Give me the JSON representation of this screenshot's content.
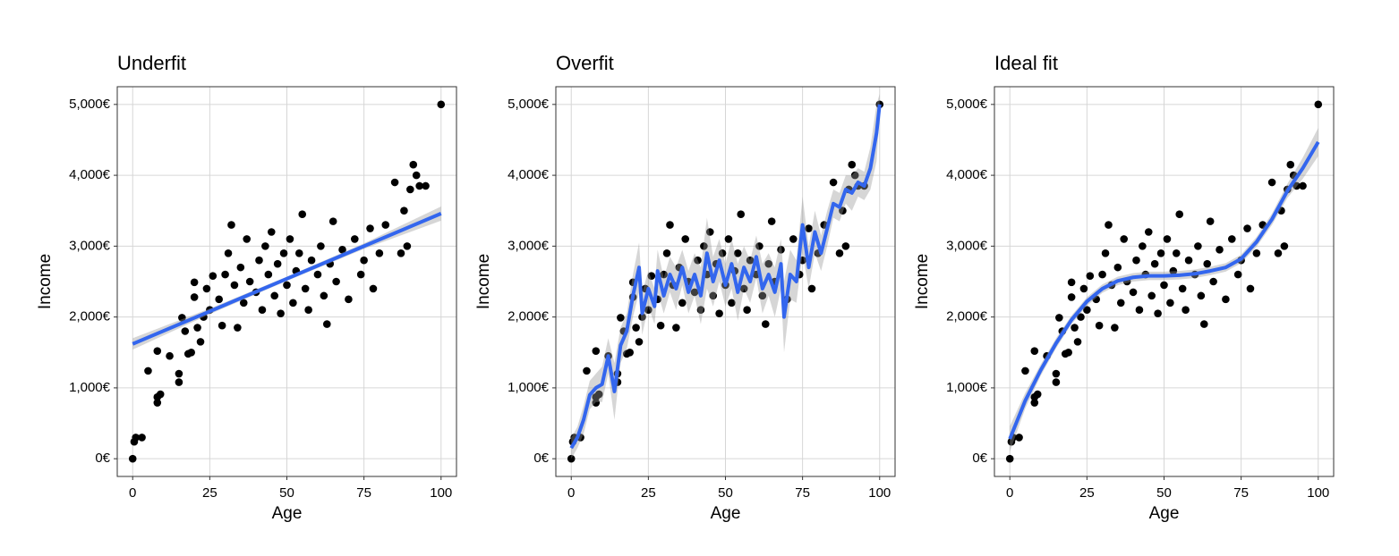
{
  "chart_data": [
    {
      "type": "scatter",
      "title": "Underfit",
      "xlabel": "Age",
      "ylabel": "Income",
      "xlim": [
        -5,
        105
      ],
      "ylim": [
        -250,
        5250
      ],
      "xticks": [
        0,
        25,
        50,
        75,
        100
      ],
      "yticks": [
        {
          "value": 0,
          "label": "0€"
        },
        {
          "value": 1000,
          "label": "1,000€"
        },
        {
          "value": 2000,
          "label": "2,000€"
        },
        {
          "value": 3000,
          "label": "3,000€"
        },
        {
          "value": 4000,
          "label": "4,000€"
        },
        {
          "value": 5000,
          "label": "5,000€"
        }
      ],
      "grid": true,
      "points": {
        "color": "#000000",
        "x": [
          0,
          0.5,
          1,
          3,
          5,
          8,
          8,
          9,
          8,
          12,
          15,
          15,
          16,
          17,
          18,
          19,
          20,
          20,
          21,
          22,
          23,
          24,
          25,
          26,
          28,
          29,
          30,
          31,
          32,
          33,
          34,
          35,
          36,
          37,
          38,
          40,
          41,
          42,
          43,
          44,
          45,
          46,
          47,
          48,
          49,
          50,
          51,
          52,
          53,
          54,
          55,
          56,
          57,
          58,
          60,
          61,
          62,
          63,
          64,
          65,
          66,
          68,
          70,
          72,
          74,
          75,
          77,
          78,
          80,
          82,
          85,
          87,
          88,
          89,
          90,
          91,
          92,
          93,
          95,
          100
        ],
        "values": [
          0,
          240,
          300,
          300,
          1240,
          790,
          870,
          910,
          1520,
          1450,
          1080,
          1200,
          1990,
          1800,
          1480,
          1500,
          2280,
          2490,
          1850,
          1650,
          2000,
          2400,
          2100,
          2580,
          2250,
          1880,
          2600,
          2900,
          3300,
          2450,
          1850,
          2700,
          2200,
          3100,
          2500,
          2350,
          2800,
          2100,
          3000,
          2600,
          3200,
          2300,
          2750,
          2050,
          2900,
          2450,
          3100,
          2200,
          2650,
          2900,
          3450,
          2400,
          2100,
          2800,
          2600,
          3000,
          2300,
          1900,
          2750,
          3350,
          2500,
          2950,
          2250,
          3100,
          2600,
          2800,
          3250,
          2400,
          2900,
          3300,
          3900,
          2900,
          3500,
          3000,
          3800,
          4150,
          4000,
          3850,
          3850,
          5000
        ]
      },
      "fit": {
        "color": "#3366ee",
        "x": [
          0,
          25,
          50,
          75,
          100
        ],
        "values": [
          1620,
          2080,
          2540,
          3000,
          3460
        ],
        "lower": [
          1540,
          2040,
          2510,
          2960,
          3360
        ],
        "upper": [
          1700,
          2120,
          2570,
          3040,
          3560
        ]
      }
    },
    {
      "type": "scatter",
      "title": "Overfit",
      "xlabel": "Age",
      "ylabel": "Income",
      "xlim": [
        -5,
        105
      ],
      "ylim": [
        -250,
        5250
      ],
      "xticks": [
        0,
        25,
        50,
        75,
        100
      ],
      "yticks": [
        {
          "value": 0,
          "label": "0€"
        },
        {
          "value": 1000,
          "label": "1,000€"
        },
        {
          "value": 2000,
          "label": "2,000€"
        },
        {
          "value": 3000,
          "label": "3,000€"
        },
        {
          "value": 4000,
          "label": "4,000€"
        },
        {
          "value": 5000,
          "label": "5,000€"
        }
      ],
      "grid": true,
      "points": {
        "color": "#000000",
        "x": [
          0,
          0.5,
          1,
          3,
          5,
          8,
          8,
          9,
          8,
          12,
          15,
          15,
          16,
          17,
          18,
          19,
          20,
          20,
          21,
          22,
          23,
          24,
          25,
          26,
          28,
          29,
          30,
          31,
          32,
          33,
          34,
          35,
          36,
          37,
          38,
          40,
          41,
          42,
          43,
          44,
          45,
          46,
          47,
          48,
          49,
          50,
          51,
          52,
          53,
          54,
          55,
          56,
          57,
          58,
          60,
          61,
          62,
          63,
          64,
          65,
          66,
          68,
          70,
          72,
          74,
          75,
          77,
          78,
          80,
          82,
          85,
          87,
          88,
          89,
          90,
          91,
          92,
          93,
          95,
          100
        ],
        "values": [
          0,
          240,
          300,
          300,
          1240,
          790,
          870,
          910,
          1520,
          1450,
          1080,
          1200,
          1990,
          1800,
          1480,
          1500,
          2280,
          2490,
          1850,
          1650,
          2000,
          2400,
          2100,
          2580,
          2250,
          1880,
          2600,
          2900,
          3300,
          2450,
          1850,
          2700,
          2200,
          3100,
          2500,
          2350,
          2800,
          2100,
          3000,
          2600,
          3200,
          2300,
          2750,
          2050,
          2900,
          2450,
          3100,
          2200,
          2650,
          2900,
          3450,
          2400,
          2100,
          2800,
          2600,
          3000,
          2300,
          1900,
          2750,
          3350,
          2500,
          2950,
          2250,
          3100,
          2600,
          2800,
          3250,
          2400,
          2900,
          3300,
          3900,
          2900,
          3500,
          3000,
          3800,
          4150,
          4000,
          3850,
          3850,
          5000
        ]
      },
      "fit": {
        "color": "#3366ee",
        "x": [
          0,
          2,
          4,
          6,
          8,
          10,
          12,
          14,
          16,
          18,
          20,
          22,
          23,
          25,
          27,
          28,
          30,
          32,
          34,
          36,
          38,
          40,
          42,
          44,
          46,
          48,
          50,
          52,
          54,
          56,
          58,
          60,
          62,
          64,
          66,
          68,
          69,
          71,
          73,
          75,
          77,
          79,
          81,
          83,
          85,
          87,
          89,
          91,
          93,
          95,
          97,
          99,
          100
        ],
        "values": [
          150,
          300,
          550,
          900,
          1000,
          1050,
          1450,
          950,
          1600,
          1800,
          2300,
          2700,
          2050,
          2400,
          2150,
          2650,
          2300,
          2600,
          2400,
          2700,
          2350,
          2600,
          2300,
          2900,
          2500,
          2800,
          2450,
          2750,
          2350,
          2700,
          2500,
          2850,
          2400,
          2600,
          2350,
          2750,
          2000,
          2600,
          2500,
          3300,
          2700,
          3200,
          2900,
          3250,
          3600,
          3550,
          3800,
          3750,
          3900,
          3850,
          4100,
          4600,
          5000
        ],
        "lower": [
          0,
          150,
          350,
          700,
          800,
          800,
          1200,
          550,
          1350,
          1550,
          2000,
          2350,
          1750,
          2150,
          1900,
          2350,
          2050,
          2350,
          2100,
          2450,
          2050,
          2300,
          1900,
          2400,
          2150,
          2500,
          2150,
          2400,
          1950,
          2400,
          2200,
          2550,
          2050,
          2300,
          2000,
          2400,
          1500,
          2250,
          2200,
          2900,
          2400,
          2900,
          2650,
          3000,
          3400,
          3350,
          3600,
          3500,
          3700,
          3650,
          3800,
          4200,
          4850
        ],
        "upper": [
          300,
          450,
          750,
          1100,
          1200,
          1300,
          1700,
          1350,
          1850,
          2050,
          2600,
          3050,
          2350,
          2650,
          2400,
          2950,
          2550,
          2850,
          2700,
          2950,
          2650,
          2900,
          2700,
          3400,
          2850,
          3100,
          2750,
          3100,
          2750,
          3000,
          2800,
          3150,
          2750,
          2900,
          2700,
          3100,
          2500,
          2950,
          2800,
          3700,
          3000,
          3500,
          3150,
          3500,
          3800,
          3750,
          4000,
          4000,
          4100,
          4050,
          4400,
          5000,
          5150
        ]
      }
    },
    {
      "type": "scatter",
      "title": "Ideal fit",
      "xlabel": "Age",
      "ylabel": "Income",
      "xlim": [
        -5,
        105
      ],
      "ylim": [
        -250,
        5250
      ],
      "xticks": [
        0,
        25,
        50,
        75,
        100
      ],
      "yticks": [
        {
          "value": 0,
          "label": "0€"
        },
        {
          "value": 1000,
          "label": "1,000€"
        },
        {
          "value": 2000,
          "label": "2,000€"
        },
        {
          "value": 3000,
          "label": "3,000€"
        },
        {
          "value": 4000,
          "label": "4,000€"
        },
        {
          "value": 5000,
          "label": "5,000€"
        }
      ],
      "grid": true,
      "points": {
        "color": "#000000",
        "x": [
          0,
          0.5,
          1,
          3,
          5,
          8,
          8,
          9,
          8,
          12,
          15,
          15,
          16,
          17,
          18,
          19,
          20,
          20,
          21,
          22,
          23,
          24,
          25,
          26,
          28,
          29,
          30,
          31,
          32,
          33,
          34,
          35,
          36,
          37,
          38,
          40,
          41,
          42,
          43,
          44,
          45,
          46,
          47,
          48,
          49,
          50,
          51,
          52,
          53,
          54,
          55,
          56,
          57,
          58,
          60,
          61,
          62,
          63,
          64,
          65,
          66,
          68,
          70,
          72,
          74,
          75,
          77,
          78,
          80,
          82,
          85,
          87,
          88,
          89,
          90,
          91,
          92,
          93,
          95,
          100
        ],
        "values": [
          0,
          240,
          300,
          300,
          1240,
          790,
          870,
          910,
          1520,
          1450,
          1080,
          1200,
          1990,
          1800,
          1480,
          1500,
          2280,
          2490,
          1850,
          1650,
          2000,
          2400,
          2100,
          2580,
          2250,
          1880,
          2600,
          2900,
          3300,
          2450,
          1850,
          2700,
          2200,
          3100,
          2500,
          2350,
          2800,
          2100,
          3000,
          2600,
          3200,
          2300,
          2750,
          2050,
          2900,
          2450,
          3100,
          2200,
          2650,
          2900,
          3450,
          2400,
          2100,
          2800,
          2600,
          3000,
          2300,
          1900,
          2750,
          3350,
          2500,
          2950,
          2250,
          3100,
          2600,
          2800,
          3250,
          2400,
          2900,
          3300,
          3900,
          2900,
          3500,
          3000,
          3800,
          4150,
          4000,
          3850,
          3850,
          5000
        ]
      },
      "fit": {
        "color": "#3366ee",
        "x": [
          0,
          5,
          10,
          15,
          20,
          25,
          30,
          35,
          40,
          45,
          50,
          55,
          60,
          65,
          70,
          75,
          80,
          85,
          90,
          95,
          100
        ],
        "values": [
          280,
          820,
          1250,
          1630,
          1960,
          2220,
          2400,
          2510,
          2560,
          2580,
          2580,
          2590,
          2610,
          2650,
          2700,
          2820,
          3060,
          3380,
          3780,
          4100,
          4470
        ],
        "lower": [
          100,
          710,
          1170,
          1560,
          1900,
          2160,
          2340,
          2450,
          2500,
          2520,
          2520,
          2530,
          2550,
          2590,
          2640,
          2760,
          2990,
          3300,
          3680,
          3950,
          4270
        ],
        "upper": [
          460,
          930,
          1330,
          1700,
          2020,
          2280,
          2460,
          2570,
          2620,
          2640,
          2640,
          2650,
          2670,
          2710,
          2760,
          2880,
          3130,
          3460,
          3880,
          4250,
          4670
        ]
      }
    }
  ]
}
